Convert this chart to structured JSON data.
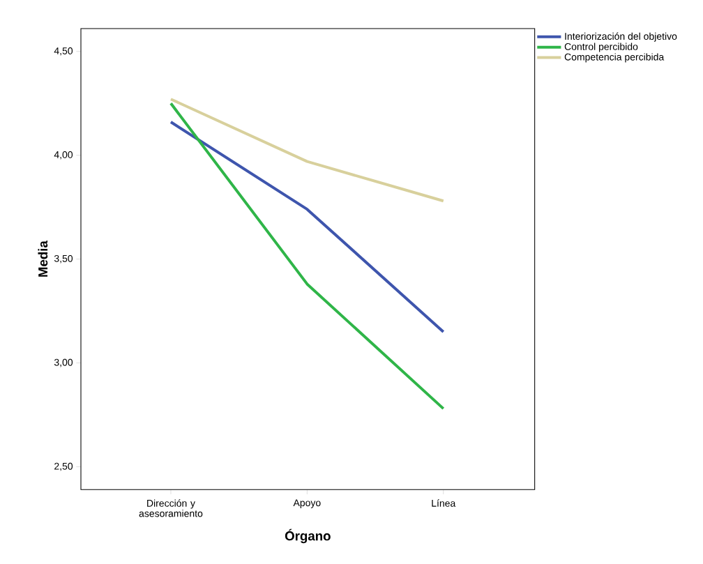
{
  "chart_data": {
    "type": "line",
    "xlabel": "Órgano",
    "ylabel": "Media",
    "categories": [
      "Dirección y asesoramiento",
      "Apoyo",
      "Línea"
    ],
    "series": [
      {
        "name": "Interiorización del objetivo",
        "color": "#3e55ad",
        "values": [
          4.16,
          3.74,
          3.15
        ]
      },
      {
        "name": "Control percibido",
        "color": "#2fb548",
        "values": [
          4.25,
          3.38,
          2.78
        ]
      },
      {
        "name": "Competencia percibida",
        "color": "#d8d09c",
        "values": [
          4.27,
          3.97,
          3.78
        ]
      }
    ],
    "ylim": [
      2.39,
      4.61
    ],
    "yticks": [
      {
        "value": 2.5,
        "label": "2,50"
      },
      {
        "value": 3.0,
        "label": "3,00"
      },
      {
        "value": 3.5,
        "label": "3,50"
      },
      {
        "value": 4.0,
        "label": "4,00"
      },
      {
        "value": 4.5,
        "label": "4,50"
      }
    ],
    "legend": "top right",
    "grid": false,
    "marker": "none",
    "line_style": "solid"
  }
}
